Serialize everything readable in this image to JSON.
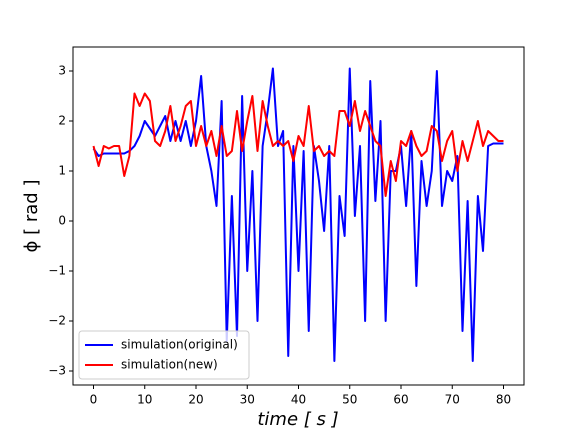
{
  "chart_data": {
    "type": "line",
    "xlabel": "time [ s ]",
    "ylabel": "ϕ [ rad ]",
    "x": [
      0,
      1,
      2,
      3,
      4,
      5,
      6,
      7,
      8,
      9,
      10,
      11,
      12,
      13,
      14,
      15,
      16,
      17,
      18,
      19,
      20,
      21,
      22,
      23,
      24,
      25,
      26,
      27,
      28,
      29,
      30,
      31,
      32,
      33,
      34,
      35,
      36,
      37,
      38,
      39,
      40,
      41,
      42,
      43,
      44,
      45,
      46,
      47,
      48,
      49,
      50,
      51,
      52,
      53,
      54,
      55,
      56,
      57,
      58,
      59,
      60,
      61,
      62,
      63,
      64,
      65,
      66,
      67,
      68,
      69,
      70,
      71,
      72,
      73,
      74,
      75,
      76,
      77,
      78,
      79,
      80
    ],
    "series": [
      {
        "name": "simulation(original)",
        "color": "#0000ff",
        "values": [
          1.45,
          1.3,
          1.35,
          1.35,
          1.35,
          1.35,
          1.35,
          1.4,
          1.5,
          1.7,
          2.0,
          1.85,
          1.7,
          1.9,
          2.1,
          1.6,
          2.0,
          1.6,
          2.0,
          1.5,
          2.0,
          2.9,
          1.5,
          1.0,
          0.3,
          2.4,
          -2.4,
          0.5,
          -2.3,
          2.5,
          -1.0,
          1.0,
          -2.0,
          1.5,
          2.2,
          3.05,
          1.5,
          1.8,
          -2.7,
          1.5,
          -1.0,
          1.4,
          -2.2,
          1.5,
          0.8,
          -0.2,
          1.5,
          -2.8,
          0.5,
          -0.3,
          3.05,
          0.1,
          1.5,
          -2.0,
          2.8,
          0.4,
          2.0,
          -2.0,
          1.0,
          1.0,
          1.5,
          0.3,
          1.8,
          -1.3,
          1.2,
          0.3,
          1.0,
          3.0,
          0.3,
          1.0,
          0.8,
          1.3,
          -2.2,
          0.4,
          -2.8,
          0.5,
          -0.6,
          1.5,
          1.55,
          1.55,
          1.55
        ]
      },
      {
        "name": "simulation(new)",
        "color": "#ff0000",
        "values": [
          1.5,
          1.1,
          1.5,
          1.45,
          1.5,
          1.5,
          0.9,
          1.3,
          2.55,
          2.3,
          2.55,
          2.4,
          1.6,
          1.5,
          1.8,
          2.3,
          1.6,
          1.9,
          2.3,
          2.4,
          1.5,
          1.9,
          1.5,
          1.8,
          1.3,
          1.9,
          1.3,
          1.4,
          2.2,
          1.4,
          2.0,
          2.5,
          1.4,
          2.4,
          1.9,
          1.5,
          1.6,
          1.5,
          1.6,
          1.2,
          1.7,
          1.5,
          2.3,
          1.4,
          1.5,
          1.3,
          1.4,
          1.3,
          2.2,
          2.2,
          1.9,
          2.4,
          1.8,
          2.2,
          1.9,
          1.6,
          1.5,
          0.5,
          1.2,
          0.8,
          1.6,
          1.5,
          1.8,
          1.5,
          1.3,
          1.4,
          1.9,
          1.8,
          1.2,
          1.6,
          1.8,
          1.0,
          1.6,
          1.2,
          1.6,
          2.0,
          1.5,
          1.8,
          1.7,
          1.6,
          1.6
        ]
      }
    ],
    "xlim": [
      -4,
      84
    ],
    "ylim": [
      -3.28,
      3.48
    ],
    "xticks": [
      0,
      10,
      20,
      30,
      40,
      50,
      60,
      70,
      80
    ],
    "yticks": [
      {
        "value": -3,
        "label": "−3"
      },
      {
        "value": -2,
        "label": "−2"
      },
      {
        "value": -1,
        "label": "−1"
      },
      0,
      1,
      2,
      3
    ],
    "legend": "lower left"
  }
}
